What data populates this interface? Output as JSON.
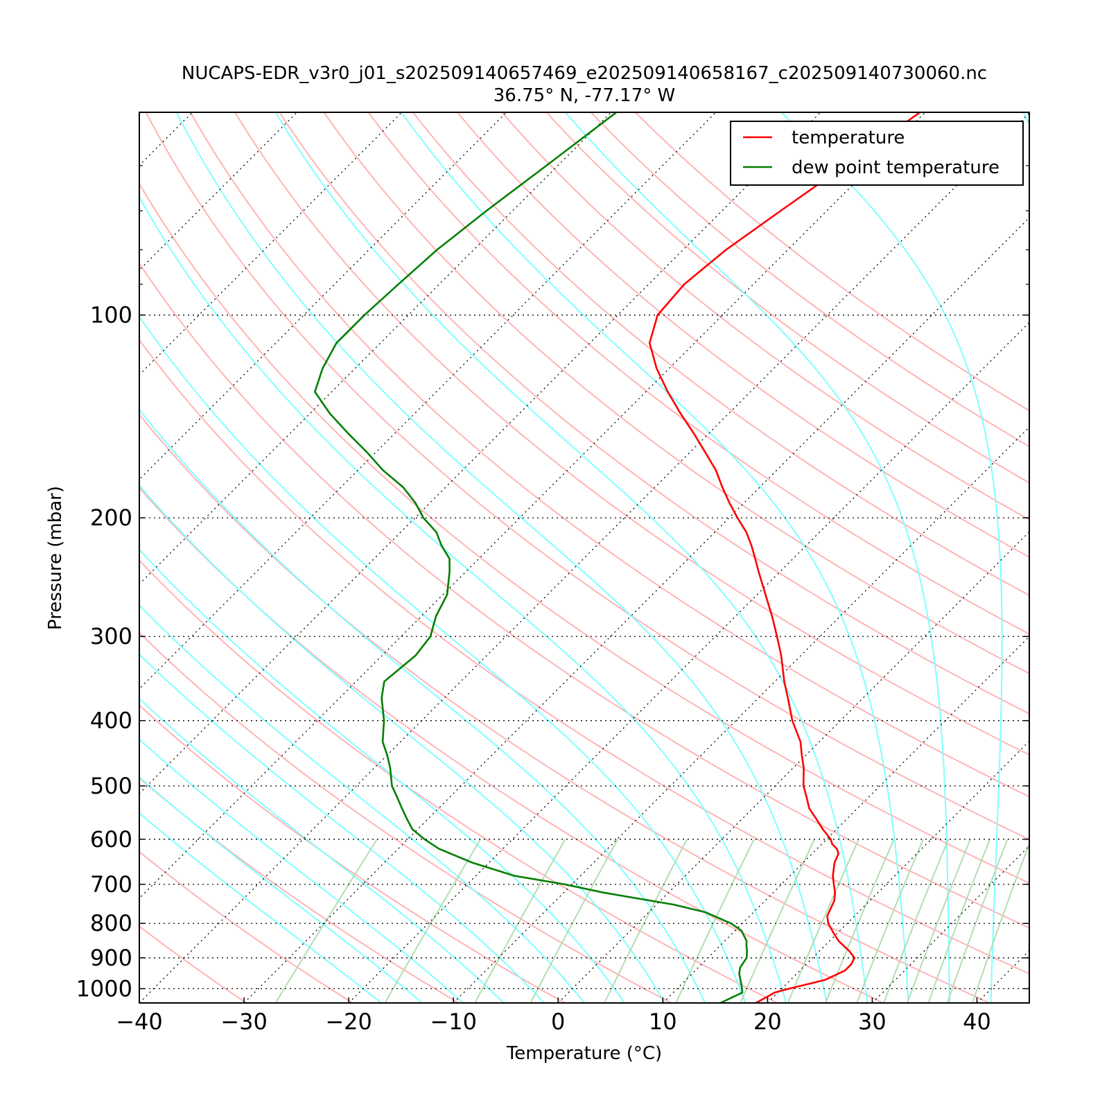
{
  "chart_data": {
    "type": "line",
    "subtype": "skew-T log-P diagram",
    "title": "NUCAPS-EDR_v3r0_j01_s202509140657469_e202509140658167_c202509140730060.nc",
    "subtitle": "36.75° N, -77.17° W",
    "xlabel": "Temperature (°C)",
    "ylabel": "Pressure (mbar)",
    "xlim": [
      -40,
      45
    ],
    "ylim": [
      1050,
      50
    ],
    "y_scale": "log",
    "x_skew": "45 degrees",
    "x_ticks": [
      -40,
      -30,
      -20,
      -10,
      0,
      10,
      20,
      30,
      40
    ],
    "x_tick_labels": [
      "−40",
      "−30",
      "−20",
      "−10",
      "0",
      "10",
      "20",
      "30",
      "40"
    ],
    "y_ticks": [
      100,
      200,
      300,
      400,
      500,
      600,
      700,
      800,
      900,
      1000
    ],
    "y_tick_labels": [
      "100",
      "200",
      "300",
      "400",
      "500",
      "600",
      "700",
      "800",
      "900",
      "1000"
    ],
    "grid": "horizontal dotted isobars, dotted skewed isotherms",
    "legend": {
      "position": "top-right",
      "entries": [
        "temperature",
        "dew point temperature"
      ]
    },
    "series": [
      {
        "name": "temperature",
        "color": "#ff0000",
        "pressure": [
          1050,
          1013,
          1000,
          970,
          940,
          920,
          900,
          880,
          850,
          830,
          800,
          780,
          760,
          740,
          720,
          700,
          680,
          650,
          630,
          620,
          610,
          600,
          580,
          560,
          540,
          520,
          500,
          470,
          450,
          430,
          400,
          370,
          350,
          320,
          300,
          280,
          260,
          240,
          230,
          220,
          210,
          200,
          190,
          180,
          170,
          160,
          150,
          140,
          130,
          120,
          110,
          100,
          90,
          80,
          70,
          60,
          50
        ],
        "temperature": [
          18.9,
          19.7,
          20.7,
          23.3,
          24.3,
          24.3,
          24.0,
          22.9,
          20.9,
          19.8,
          18.2,
          17.4,
          17.0,
          16.6,
          15.9,
          15.0,
          14.1,
          13.0,
          12.5,
          11.9,
          11.0,
          10.4,
          8.7,
          7.1,
          5.4,
          4.1,
          2.7,
          1.0,
          -0.4,
          -1.8,
          -4.6,
          -7.2,
          -9.1,
          -11.9,
          -14.1,
          -16.5,
          -19.2,
          -22.1,
          -23.6,
          -25.2,
          -27.0,
          -29.2,
          -31.4,
          -33.6,
          -35.8,
          -38.5,
          -41.4,
          -44.6,
          -47.9,
          -51.2,
          -54.3,
          -56.2,
          -56.6,
          -55.9,
          -54.4,
          -52.6,
          -50.5
        ]
      },
      {
        "name": "dew point temperature",
        "color": "#007f00",
        "pressure": [
          1050,
          1013,
          1000,
          970,
          950,
          930,
          900,
          880,
          860,
          850,
          820,
          800,
          770,
          750,
          720,
          700,
          680,
          650,
          620,
          600,
          580,
          560,
          540,
          520,
          500,
          470,
          450,
          430,
          400,
          370,
          350,
          320,
          300,
          280,
          260,
          240,
          230,
          220,
          210,
          200,
          190,
          180,
          170,
          160,
          150,
          140,
          130,
          120,
          110,
          100,
          90,
          80,
          70,
          60,
          50
        ],
        "temperature": [
          15.5,
          16.6,
          16.2,
          15.2,
          14.5,
          14.0,
          13.7,
          13.1,
          12.4,
          12.1,
          10.6,
          8.9,
          5.4,
          1.6,
          -6.2,
          -10.7,
          -16.3,
          -21.6,
          -26.1,
          -28.4,
          -30.5,
          -32.0,
          -33.5,
          -35.0,
          -36.6,
          -38.5,
          -40.0,
          -41.7,
          -43.6,
          -46.0,
          -47.3,
          -46.8,
          -47.2,
          -48.6,
          -49.6,
          -51.6,
          -52.8,
          -54.8,
          -56.6,
          -59.2,
          -61.4,
          -64.1,
          -67.6,
          -70.8,
          -74.4,
          -78.1,
          -81.6,
          -83.1,
          -84.2,
          -84.2,
          -83.9,
          -83.5,
          -82.5,
          -81.1,
          -79.5
        ]
      }
    ],
    "background_lines": [
      {
        "kind": "dry adiabats",
        "color": "#ffb4b4"
      },
      {
        "kind": "moist adiabats",
        "color": "#80ffff"
      },
      {
        "kind": "mixing ratio lines",
        "color": "#b4dcb4"
      }
    ]
  }
}
